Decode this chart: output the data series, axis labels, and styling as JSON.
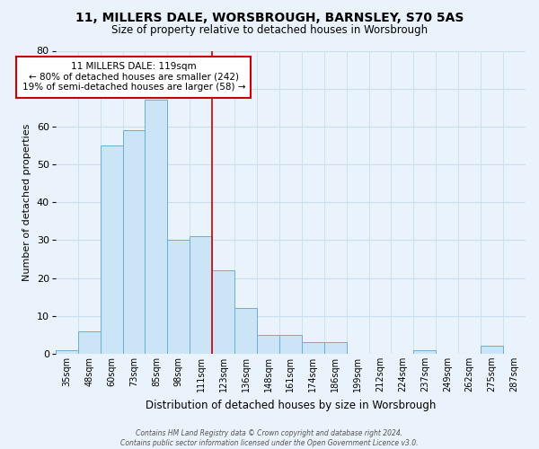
{
  "title_line1": "11, MILLERS DALE, WORSBROUGH, BARNSLEY, S70 5AS",
  "title_line2": "Size of property relative to detached houses in Worsbrough",
  "xlabel": "Distribution of detached houses by size in Worsbrough",
  "ylabel": "Number of detached properties",
  "bar_color": "#cce5f6",
  "bar_edge_color": "#6baed6",
  "background_color": "#eaf3fb",
  "plot_bg_color": "#eaf3fb",
  "grid_color": "#c8dff0",
  "categories": [
    "35sqm",
    "48sqm",
    "60sqm",
    "73sqm",
    "85sqm",
    "98sqm",
    "111sqm",
    "123sqm",
    "136sqm",
    "148sqm",
    "161sqm",
    "174sqm",
    "186sqm",
    "199sqm",
    "212sqm",
    "224sqm",
    "237sqm",
    "249sqm",
    "262sqm",
    "275sqm",
    "287sqm"
  ],
  "values": [
    1,
    6,
    55,
    59,
    67,
    30,
    31,
    22,
    12,
    5,
    5,
    3,
    3,
    0,
    0,
    0,
    1,
    0,
    0,
    2,
    0
  ],
  "ylim": [
    0,
    80
  ],
  "yticks": [
    0,
    10,
    20,
    30,
    40,
    50,
    60,
    70,
    80
  ],
  "property_line_idx": 7,
  "property_line_color": "#cc0000",
  "annotation_title": "11 MILLERS DALE: 119sqm",
  "annotation_line1": "← 80% of detached houses are smaller (242)",
  "annotation_line2": "19% of semi-detached houses are larger (58) →",
  "annotation_box_color": "#ffffff",
  "annotation_box_edge": "#cc0000",
  "footer_line1": "Contains HM Land Registry data © Crown copyright and database right 2024.",
  "footer_line2": "Contains public sector information licensed under the Open Government Licence v3.0."
}
